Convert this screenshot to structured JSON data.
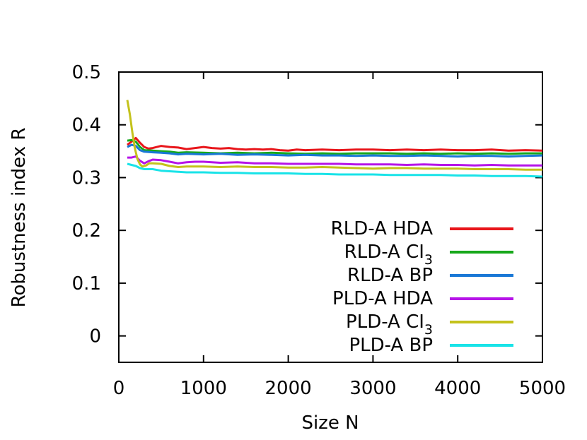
{
  "chart_data": {
    "type": "line",
    "xlabel": "Size N",
    "ylabel": "Robustness index R",
    "xlim": [
      0,
      5000
    ],
    "ylim": [
      -0.05,
      0.5
    ],
    "xticks": [
      0,
      1000,
      2000,
      3000,
      4000,
      5000
    ],
    "yticks": [
      0,
      0.1,
      0.2,
      0.3,
      0.4,
      0.5
    ],
    "xtick_labels": [
      "0",
      "1000",
      "2000",
      "3000",
      "4000",
      "5000"
    ],
    "ytick_labels": [
      "0",
      "0.1",
      "0.2",
      "0.3",
      "0.4",
      "0.5"
    ],
    "grid": false,
    "legend_position": "bottom-right",
    "series": [
      {
        "name": "RLD-A HDA",
        "label_main": "RLD-A HDA",
        "label_sub": "",
        "color": "#e8161b",
        "x": [
          100,
          150,
          200,
          250,
          300,
          350,
          400,
          500,
          600,
          700,
          800,
          900,
          1000,
          1100,
          1200,
          1300,
          1400,
          1500,
          1600,
          1700,
          1800,
          1900,
          2000,
          2100,
          2200,
          2400,
          2600,
          2800,
          3000,
          3200,
          3400,
          3600,
          3800,
          4000,
          4200,
          4400,
          4600,
          4800,
          5000
        ],
        "y": [
          0.362,
          0.368,
          0.375,
          0.366,
          0.358,
          0.355,
          0.356,
          0.36,
          0.358,
          0.357,
          0.354,
          0.356,
          0.358,
          0.356,
          0.355,
          0.356,
          0.354,
          0.353,
          0.354,
          0.353,
          0.354,
          0.352,
          0.351,
          0.353,
          0.352,
          0.353,
          0.352,
          0.353,
          0.353,
          0.352,
          0.353,
          0.352,
          0.353,
          0.352,
          0.352,
          0.353,
          0.351,
          0.352,
          0.351
        ]
      },
      {
        "name": "RLD-A CI3",
        "label_main": "RLD-A CI",
        "label_sub": "3",
        "color": "#17a81b",
        "x": [
          100,
          150,
          200,
          250,
          300,
          400,
          500,
          600,
          700,
          800,
          1000,
          1200,
          1400,
          1600,
          1800,
          2000,
          2200,
          2400,
          2600,
          2800,
          3000,
          3200,
          3400,
          3600,
          3800,
          4000,
          4200,
          4400,
          4600,
          4800,
          5000
        ],
        "y": [
          0.37,
          0.371,
          0.368,
          0.358,
          0.352,
          0.351,
          0.35,
          0.349,
          0.347,
          0.348,
          0.347,
          0.346,
          0.347,
          0.346,
          0.347,
          0.346,
          0.345,
          0.346,
          0.345,
          0.346,
          0.346,
          0.346,
          0.345,
          0.346,
          0.345,
          0.346,
          0.345,
          0.346,
          0.345,
          0.346,
          0.346
        ]
      },
      {
        "name": "RLD-A BP",
        "label_main": "RLD-A BP",
        "label_sub": "",
        "color": "#1978d6",
        "x": [
          100,
          150,
          200,
          250,
          300,
          400,
          500,
          600,
          700,
          800,
          1000,
          1200,
          1400,
          1600,
          1800,
          2000,
          2200,
          2400,
          2600,
          2800,
          3000,
          3200,
          3400,
          3600,
          3800,
          4000,
          4200,
          4400,
          4600,
          4800,
          5000
        ],
        "y": [
          0.358,
          0.362,
          0.36,
          0.352,
          0.349,
          0.348,
          0.347,
          0.346,
          0.344,
          0.345,
          0.344,
          0.345,
          0.343,
          0.344,
          0.343,
          0.342,
          0.343,
          0.342,
          0.342,
          0.341,
          0.342,
          0.341,
          0.341,
          0.342,
          0.341,
          0.34,
          0.341,
          0.341,
          0.34,
          0.341,
          0.342
        ]
      },
      {
        "name": "PLD-A HDA",
        "label_main": "PLD-A HDA",
        "label_sub": "",
        "color": "#b614e8",
        "x": [
          100,
          150,
          200,
          250,
          300,
          350,
          400,
          500,
          600,
          700,
          800,
          900,
          1000,
          1200,
          1400,
          1600,
          1800,
          2000,
          2200,
          2400,
          2600,
          2800,
          3000,
          3200,
          3400,
          3600,
          3800,
          4000,
          4200,
          4400,
          4600,
          4800,
          5000
        ],
        "y": [
          0.338,
          0.338,
          0.34,
          0.332,
          0.327,
          0.331,
          0.334,
          0.333,
          0.33,
          0.327,
          0.329,
          0.33,
          0.33,
          0.328,
          0.329,
          0.327,
          0.327,
          0.326,
          0.326,
          0.326,
          0.326,
          0.325,
          0.325,
          0.325,
          0.324,
          0.325,
          0.324,
          0.324,
          0.323,
          0.324,
          0.323,
          0.323,
          0.323
        ]
      },
      {
        "name": "PLD-A CI3",
        "label_main": "PLD-A CI",
        "label_sub": "3",
        "color": "#c4c21c",
        "x": [
          100,
          130,
          160,
          190,
          220,
          250,
          280,
          320,
          360,
          400,
          500,
          600,
          700,
          800,
          1000,
          1200,
          1400,
          1600,
          1800,
          2000,
          2200,
          2400,
          2600,
          2800,
          3000,
          3200,
          3400,
          3600,
          3800,
          4000,
          4200,
          4400,
          4600,
          4800,
          5000
        ],
        "y": [
          0.447,
          0.42,
          0.385,
          0.355,
          0.335,
          0.325,
          0.321,
          0.323,
          0.327,
          0.327,
          0.326,
          0.322,
          0.32,
          0.321,
          0.321,
          0.32,
          0.321,
          0.32,
          0.32,
          0.319,
          0.319,
          0.32,
          0.319,
          0.318,
          0.317,
          0.318,
          0.318,
          0.317,
          0.317,
          0.317,
          0.316,
          0.316,
          0.316,
          0.315,
          0.315
        ]
      },
      {
        "name": "PLD-A BP",
        "label_main": "PLD-A BP",
        "label_sub": "",
        "color": "#19e3e8",
        "x": [
          100,
          150,
          200,
          250,
          300,
          400,
          500,
          600,
          700,
          800,
          1000,
          1200,
          1400,
          1600,
          1800,
          2000,
          2200,
          2400,
          2600,
          2800,
          3000,
          3200,
          3400,
          3600,
          3800,
          4000,
          4200,
          4400,
          4600,
          4800,
          5000
        ],
        "y": [
          0.326,
          0.324,
          0.322,
          0.318,
          0.316,
          0.316,
          0.313,
          0.312,
          0.311,
          0.31,
          0.31,
          0.309,
          0.309,
          0.308,
          0.308,
          0.308,
          0.307,
          0.307,
          0.306,
          0.306,
          0.306,
          0.305,
          0.305,
          0.305,
          0.305,
          0.304,
          0.304,
          0.303,
          0.303,
          0.303,
          0.302
        ]
      }
    ]
  }
}
